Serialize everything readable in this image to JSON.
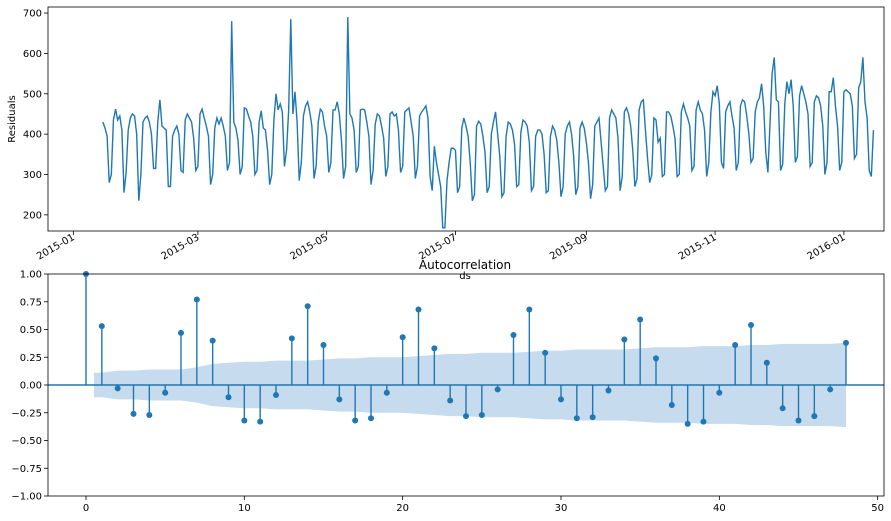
{
  "chart_data": [
    {
      "type": "line",
      "title": "",
      "xlabel": "ds",
      "ylabel": "Residuals",
      "x_tick_labels": [
        "2015-01",
        "2015-03",
        "2015-05",
        "2015-07",
        "2015-09",
        "2015-11",
        "2016-01"
      ],
      "y_ticks": [
        200,
        300,
        400,
        500,
        600,
        700
      ],
      "xlim": [
        "2014-12-20",
        "2016-01-20"
      ],
      "ylim": [
        160,
        715
      ],
      "grid": false,
      "series_color": "#1f77b4",
      "series": [
        {
          "x_start": "2015-01-15",
          "x_step_days": 1,
          "values": [
            430,
            415,
            395,
            280,
            300,
            435,
            462,
            435,
            445,
            410,
            255,
            305,
            410,
            440,
            450,
            445,
            400,
            235,
            300,
            430,
            440,
            445,
            430,
            400,
            315,
            315,
            430,
            485,
            420,
            415,
            410,
            270,
            270,
            395,
            410,
            420,
            400,
            310,
            305,
            435,
            450,
            440,
            430,
            390,
            310,
            320,
            450,
            462,
            440,
            420,
            395,
            275,
            300,
            415,
            440,
            425,
            440,
            420,
            395,
            310,
            330,
            680,
            430,
            415,
            385,
            300,
            320,
            465,
            462,
            445,
            430,
            395,
            300,
            310,
            430,
            458,
            415,
            410,
            360,
            275,
            300,
            435,
            500,
            460,
            475,
            455,
            320,
            360,
            460,
            685,
            450,
            505,
            430,
            285,
            330,
            445,
            470,
            480,
            455,
            420,
            290,
            320,
            430,
            462,
            455,
            420,
            395,
            305,
            330,
            460,
            460,
            480,
            450,
            385,
            290,
            320,
            690,
            450,
            440,
            410,
            305,
            320,
            460,
            462,
            460,
            430,
            395,
            275,
            310,
            425,
            450,
            445,
            420,
            390,
            295,
            320,
            450,
            455,
            445,
            450,
            410,
            305,
            320,
            455,
            460,
            465,
            430,
            395,
            290,
            320,
            445,
            455,
            462,
            470,
            440,
            295,
            260,
            370,
            330,
            300,
            270,
            168,
            168,
            285,
            330,
            365,
            365,
            360,
            255,
            270,
            415,
            440,
            420,
            395,
            330,
            235,
            250,
            420,
            432,
            425,
            395,
            355,
            255,
            270,
            400,
            430,
            455,
            400,
            345,
            245,
            255,
            395,
            430,
            425,
            410,
            375,
            270,
            275,
            405,
            435,
            430,
            420,
            380,
            260,
            270,
            395,
            410,
            410,
            400,
            350,
            255,
            260,
            395,
            420,
            410,
            385,
            330,
            245,
            270,
            400,
            420,
            430,
            400,
            345,
            250,
            270,
            415,
            430,
            415,
            380,
            330,
            240,
            275,
            420,
            430,
            440,
            380,
            320,
            260,
            270,
            440,
            460,
            450,
            440,
            390,
            260,
            295,
            455,
            465,
            450,
            420,
            360,
            270,
            290,
            460,
            480,
            485,
            410,
            340,
            280,
            300,
            440,
            435,
            380,
            390,
            295,
            300,
            455,
            455,
            445,
            420,
            390,
            295,
            300,
            455,
            475,
            455,
            440,
            420,
            310,
            320,
            460,
            480,
            460,
            450,
            410,
            295,
            330,
            455,
            505,
            495,
            520,
            475,
            330,
            315,
            455,
            470,
            480,
            445,
            415,
            310,
            330,
            470,
            485,
            480,
            445,
            400,
            330,
            340,
            455,
            480,
            490,
            525,
            470,
            355,
            305,
            425,
            550,
            590,
            485,
            480,
            310,
            325,
            475,
            530,
            500,
            535,
            470,
            330,
            345,
            495,
            520,
            500,
            480,
            450,
            320,
            330,
            480,
            495,
            490,
            470,
            420,
            300,
            330,
            505,
            505,
            540,
            470,
            420,
            310,
            330,
            505,
            510,
            505,
            500,
            470,
            340,
            350,
            515,
            530,
            590,
            480,
            440,
            310,
            295,
            410
          ]
        }
      ]
    },
    {
      "type": "stem",
      "title": "Autocorrelation",
      "xlabel": "",
      "ylabel": "",
      "x_ticks": [
        0,
        10,
        20,
        30,
        40,
        50
      ],
      "y_ticks": [
        -1.0,
        -0.75,
        -0.5,
        -0.25,
        0.0,
        0.25,
        0.5,
        0.75,
        1.0
      ],
      "x_tick_labels": [
        "0",
        "10",
        "20",
        "30",
        "40",
        "50"
      ],
      "y_tick_labels": [
        "−1.00",
        "−0.75",
        "−0.50",
        "−0.25",
        "0.00",
        "0.25",
        "0.50",
        "0.75",
        "1.00"
      ],
      "xlim": [
        -2.4,
        50.4
      ],
      "ylim": [
        -1.0,
        1.0
      ],
      "grid": false,
      "marker_color": "#1f77b4",
      "band_color": "#c6dbee",
      "lags": [
        0,
        1,
        2,
        3,
        4,
        5,
        6,
        7,
        8,
        9,
        10,
        11,
        12,
        13,
        14,
        15,
        16,
        17,
        18,
        19,
        20,
        21,
        22,
        23,
        24,
        25,
        26,
        27,
        28,
        29,
        30,
        31,
        32,
        33,
        34,
        35,
        36,
        37,
        38,
        39,
        40,
        41,
        42,
        43,
        44,
        45,
        46,
        47,
        48
      ],
      "acf": [
        1.0,
        0.53,
        -0.03,
        -0.26,
        -0.27,
        -0.07,
        0.47,
        0.77,
        0.4,
        -0.11,
        -0.32,
        -0.33,
        -0.09,
        0.42,
        0.71,
        0.36,
        -0.13,
        -0.32,
        -0.3,
        -0.07,
        0.43,
        0.68,
        0.33,
        -0.14,
        -0.28,
        -0.27,
        -0.04,
        0.45,
        0.68,
        0.29,
        -0.13,
        -0.3,
        -0.29,
        -0.05,
        0.41,
        0.59,
        0.24,
        -0.18,
        -0.35,
        -0.33,
        -0.07,
        0.36,
        0.54,
        0.2,
        -0.21,
        -0.32,
        -0.28,
        -0.04,
        0.38
      ],
      "confint": [
        0.11,
        0.11,
        0.13,
        0.13,
        0.14,
        0.14,
        0.14,
        0.16,
        0.19,
        0.2,
        0.21,
        0.21,
        0.22,
        0.22,
        0.22,
        0.23,
        0.24,
        0.24,
        0.25,
        0.25,
        0.25,
        0.26,
        0.27,
        0.28,
        0.28,
        0.29,
        0.29,
        0.29,
        0.3,
        0.31,
        0.31,
        0.32,
        0.32,
        0.32,
        0.32,
        0.33,
        0.34,
        0.34,
        0.34,
        0.35,
        0.35,
        0.35,
        0.36,
        0.36,
        0.37,
        0.37,
        0.37,
        0.37,
        0.38
      ]
    }
  ]
}
